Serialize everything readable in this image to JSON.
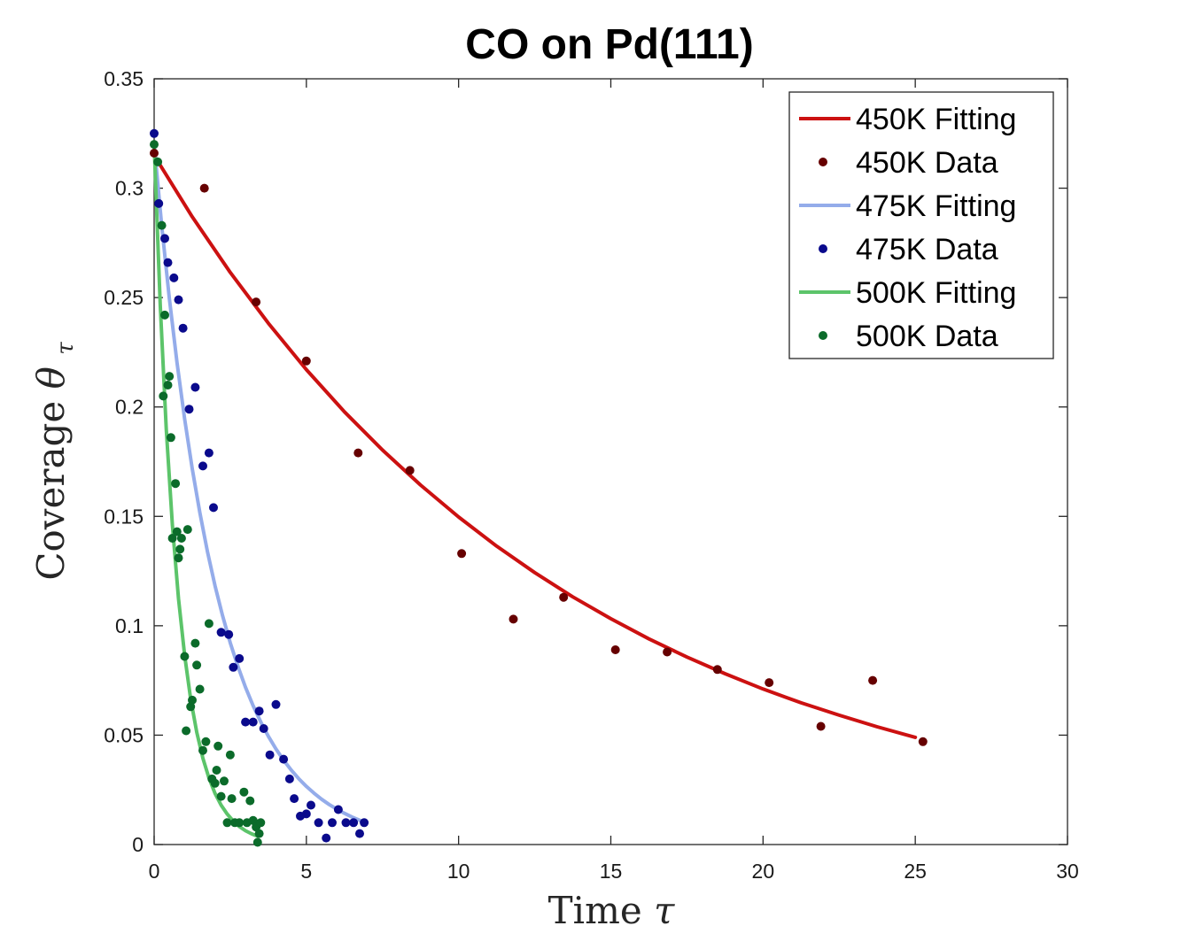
{
  "chart_data": {
    "type": "scatter",
    "title": "CO on Pd(111)",
    "xlabel": "Time",
    "xlabel_symbol": "τ",
    "ylabel": "Coverage",
    "ylabel_symbol": "θ",
    "ylabel_subscript": "τ",
    "xlim": [
      0,
      30
    ],
    "ylim": [
      0,
      0.35
    ],
    "xticks": [
      "0",
      "5",
      "10",
      "15",
      "20",
      "25",
      "30"
    ],
    "xtick_values": [
      0,
      5,
      10,
      15,
      20,
      25,
      30
    ],
    "yticks": [
      "0",
      "0.05",
      "0.1",
      "0.15",
      "0.2",
      "0.25",
      "0.3",
      "0.35"
    ],
    "ytick_values": [
      0,
      0.05,
      0.1,
      0.15,
      0.2,
      0.25,
      0.3,
      0.35
    ],
    "grid": false,
    "legend_position": "top-right",
    "series": [
      {
        "name": "450K Fitting",
        "kind": "line",
        "color": "#cc1111",
        "x": [
          0,
          1.25,
          2.5,
          3.75,
          5,
          6.25,
          7.5,
          8.75,
          10,
          11.25,
          12.5,
          13.75,
          15,
          16.25,
          17.5,
          18.75,
          20,
          21.25,
          22.5,
          23.75,
          25
        ],
        "y": [
          0.315,
          0.2869,
          0.2615,
          0.2383,
          0.2171,
          0.1978,
          0.1803,
          0.1643,
          0.1497,
          0.1364,
          0.1243,
          0.1132,
          0.1032,
          0.094,
          0.0857,
          0.0781,
          0.0711,
          0.0648,
          0.0591,
          0.0538,
          0.049
        ]
      },
      {
        "name": "450K Data",
        "kind": "points",
        "color": "#660000",
        "x": [
          0,
          1.65,
          3.35,
          5.0,
          6.7,
          8.4,
          10.1,
          11.8,
          13.45,
          15.15,
          16.85,
          18.5,
          20.2,
          21.9,
          23.6,
          25.25
        ],
        "y": [
          0.316,
          0.3,
          0.248,
          0.221,
          0.179,
          0.171,
          0.133,
          0.103,
          0.113,
          0.089,
          0.088,
          0.08,
          0.074,
          0.054,
          0.075,
          0.047
        ]
      },
      {
        "name": "475K Fitting",
        "kind": "line",
        "color": "#94acea",
        "x": [
          0,
          0.25,
          0.5,
          0.75,
          1.0,
          1.25,
          1.5,
          1.75,
          2.0,
          2.25,
          2.5,
          2.75,
          3.0,
          3.25,
          3.5,
          3.75,
          4.0,
          4.25,
          4.5,
          4.75,
          5.0,
          5.25,
          5.5,
          5.75,
          6.0,
          6.25,
          6.5,
          6.75,
          6.9
        ],
        "y": [
          0.32,
          0.2826,
          0.2495,
          0.2203,
          0.1946,
          0.1718,
          0.1517,
          0.134,
          0.1183,
          0.1045,
          0.0922,
          0.0815,
          0.0719,
          0.0635,
          0.0561,
          0.0495,
          0.0437,
          0.0386,
          0.0341,
          0.0301,
          0.0266,
          0.0235,
          0.0207,
          0.0183,
          0.0162,
          0.0143,
          0.0126,
          0.0111,
          0.0104
        ]
      },
      {
        "name": "475K Data",
        "kind": "points",
        "color": "#0a0a8c",
        "x": [
          0.0,
          0.15,
          0.35,
          0.45,
          0.65,
          0.8,
          0.95,
          1.15,
          1.35,
          1.6,
          1.8,
          1.95,
          2.2,
          2.45,
          2.6,
          2.8,
          3.0,
          3.25,
          3.45,
          3.6,
          3.8,
          4.0,
          4.25,
          4.45,
          4.6,
          4.8,
          5.0,
          5.15,
          5.4,
          5.65,
          5.85,
          6.05,
          6.3,
          6.55,
          6.75,
          6.9
        ],
        "y": [
          0.325,
          0.293,
          0.277,
          0.266,
          0.259,
          0.249,
          0.236,
          0.199,
          0.209,
          0.173,
          0.179,
          0.154,
          0.097,
          0.096,
          0.081,
          0.085,
          0.056,
          0.056,
          0.061,
          0.053,
          0.041,
          0.064,
          0.039,
          0.03,
          0.021,
          0.013,
          0.014,
          0.018,
          0.01,
          0.003,
          0.01,
          0.016,
          0.01,
          0.01,
          0.005,
          0.01
        ]
      },
      {
        "name": "500K Fitting",
        "kind": "line",
        "color": "#5cc46a",
        "x": [
          0,
          0.2,
          0.4,
          0.6,
          0.8,
          1.0,
          1.2,
          1.4,
          1.6,
          1.8,
          2.0,
          2.2,
          2.4,
          2.6,
          2.8,
          3.0,
          3.2,
          3.4
        ],
        "y": [
          0.32,
          0.2464,
          0.1897,
          0.146,
          0.1124,
          0.0866,
          0.0666,
          0.0513,
          0.0395,
          0.0304,
          0.0234,
          0.018,
          0.0139,
          0.0107,
          0.0082,
          0.0063,
          0.0049,
          0.0038
        ]
      },
      {
        "name": "500K Data",
        "kind": "points",
        "color": "#0b6b2a",
        "x": [
          0.0,
          0.12,
          0.25,
          0.3,
          0.35,
          0.45,
          0.5,
          0.55,
          0.6,
          0.7,
          0.75,
          0.8,
          0.85,
          0.9,
          1.0,
          1.05,
          1.1,
          1.2,
          1.25,
          1.35,
          1.4,
          1.5,
          1.6,
          1.7,
          1.8,
          1.9,
          2.0,
          2.05,
          2.1,
          2.2,
          2.3,
          2.4,
          2.5,
          2.55,
          2.65,
          2.8,
          2.95,
          3.05,
          3.15,
          3.25,
          3.35,
          3.4,
          3.45,
          3.5
        ],
        "y": [
          0.32,
          0.312,
          0.283,
          0.205,
          0.242,
          0.21,
          0.214,
          0.186,
          0.14,
          0.165,
          0.143,
          0.131,
          0.135,
          0.14,
          0.086,
          0.052,
          0.144,
          0.063,
          0.066,
          0.092,
          0.082,
          0.071,
          0.043,
          0.047,
          0.101,
          0.03,
          0.028,
          0.034,
          0.045,
          0.022,
          0.029,
          0.01,
          0.041,
          0.021,
          0.01,
          0.01,
          0.024,
          0.01,
          0.02,
          0.011,
          0.008,
          0.001,
          0.005,
          0.01
        ]
      }
    ]
  }
}
